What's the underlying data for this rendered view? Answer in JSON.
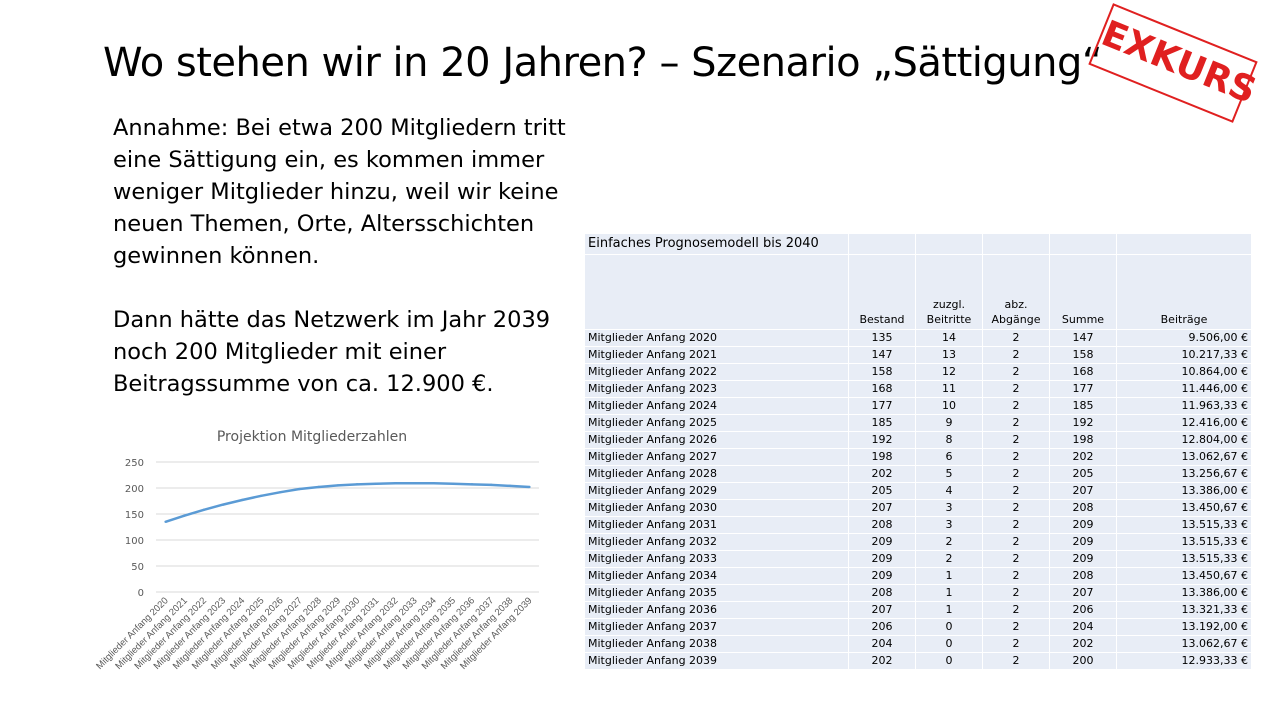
{
  "title": "Wo stehen wir in 20 Jahren? – Szenario „Sättigung“",
  "stamp": "EXKURS",
  "paragraphs": [
    "Annahme: Bei etwa 200 Mitgliedern tritt eine Sättigung ein, es kommen immer weniger Mitglieder hinzu, weil wir keine neuen Themen, Orte, Altersschichten gewinnen können.",
    "Dann hätte das Netzwerk im Jahr 2039 noch 200 Mitglieder mit einer Beitragssumme von ca. 12.900 €."
  ],
  "table": {
    "title": "Einfaches  Prognosemodell  bis 2040",
    "headers": [
      "",
      "Bestand",
      "zuzgl.\nBeitritte",
      "abz.\nAbgänge",
      "Summe",
      "Beiträge"
    ],
    "rows": [
      [
        "Mitglieder Anfang 2020",
        "135",
        "14",
        "2",
        "147",
        "9.506,00 €"
      ],
      [
        "Mitglieder Anfang 2021",
        "147",
        "13",
        "2",
        "158",
        "10.217,33 €"
      ],
      [
        "Mitglieder Anfang 2022",
        "158",
        "12",
        "2",
        "168",
        "10.864,00 €"
      ],
      [
        "Mitglieder Anfang 2023",
        "168",
        "11",
        "2",
        "177",
        "11.446,00 €"
      ],
      [
        "Mitglieder Anfang 2024",
        "177",
        "10",
        "2",
        "185",
        "11.963,33 €"
      ],
      [
        "Mitglieder Anfang 2025",
        "185",
        "9",
        "2",
        "192",
        "12.416,00 €"
      ],
      [
        "Mitglieder Anfang 2026",
        "192",
        "8",
        "2",
        "198",
        "12.804,00 €"
      ],
      [
        "Mitglieder Anfang 2027",
        "198",
        "6",
        "2",
        "202",
        "13.062,67 €"
      ],
      [
        "Mitglieder Anfang 2028",
        "202",
        "5",
        "2",
        "205",
        "13.256,67 €"
      ],
      [
        "Mitglieder Anfang 2029",
        "205",
        "4",
        "2",
        "207",
        "13.386,00 €"
      ],
      [
        "Mitglieder Anfang 2030",
        "207",
        "3",
        "2",
        "208",
        "13.450,67 €"
      ],
      [
        "Mitglieder Anfang 2031",
        "208",
        "3",
        "2",
        "209",
        "13.515,33 €"
      ],
      [
        "Mitglieder Anfang 2032",
        "209",
        "2",
        "2",
        "209",
        "13.515,33 €"
      ],
      [
        "Mitglieder Anfang 2033",
        "209",
        "2",
        "2",
        "209",
        "13.515,33 €"
      ],
      [
        "Mitglieder Anfang 2034",
        "209",
        "1",
        "2",
        "208",
        "13.450,67 €"
      ],
      [
        "Mitglieder Anfang 2035",
        "208",
        "1",
        "2",
        "207",
        "13.386,00 €"
      ],
      [
        "Mitglieder Anfang 2036",
        "207",
        "1",
        "2",
        "206",
        "13.321,33 €"
      ],
      [
        "Mitglieder Anfang 2037",
        "206",
        "0",
        "2",
        "204",
        "13.192,00 €"
      ],
      [
        "Mitglieder Anfang 2038",
        "204",
        "0",
        "2",
        "202",
        "13.062,67 €"
      ],
      [
        "Mitglieder Anfang 2039",
        "202",
        "0",
        "2",
        "200",
        "12.933,33 €"
      ]
    ]
  },
  "colors": {
    "line": "#5b9bd5",
    "stamp": "#e02020",
    "table_bg": "#e8edf6",
    "grid": "#d9d9d9"
  },
  "chart_data": {
    "type": "line",
    "title": "Projektion Mitgliederzahlen",
    "categories": [
      "Mitglieder Anfang 2020",
      "Mitglieder Anfang 2021",
      "Mitglieder Anfang 2022",
      "Mitglieder Anfang 2023",
      "Mitglieder Anfang 2024",
      "Mitglieder Anfang 2025",
      "Mitglieder Anfang 2026",
      "Mitglieder Anfang 2027",
      "Mitglieder Anfang 2028",
      "Mitglieder Anfang 2029",
      "Mitglieder Anfang 2030",
      "Mitglieder Anfang 2031",
      "Mitglieder Anfang 2032",
      "Mitglieder Anfang 2033",
      "Mitglieder Anfang 2034",
      "Mitglieder Anfang 2035",
      "Mitglieder Anfang 2036",
      "Mitglieder Anfang 2037",
      "Mitglieder Anfang 2038",
      "Mitglieder Anfang 2039"
    ],
    "values": [
      135,
      147,
      158,
      168,
      177,
      185,
      192,
      198,
      202,
      205,
      207,
      208,
      209,
      209,
      209,
      208,
      207,
      206,
      204,
      202
    ],
    "ylim": [
      0,
      250
    ],
    "yticks": [
      "0",
      "50",
      "100",
      "150",
      "200",
      "250"
    ],
    "grid": true,
    "legend": "none"
  }
}
